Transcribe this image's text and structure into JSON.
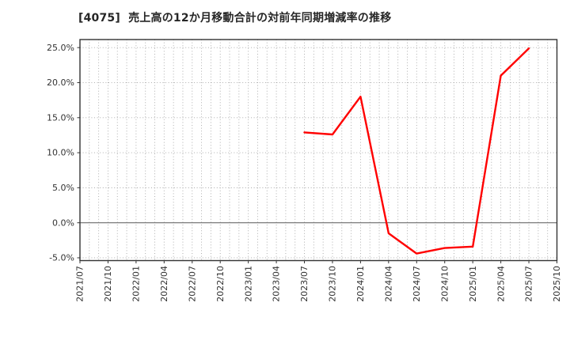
{
  "chart_data": {
    "type": "line",
    "title": "[4075]  売上高の12か月移動合計の対前年同期増減率の推移",
    "ticker": "4075",
    "x_tick_labels": [
      "2021/07",
      "2021/10",
      "2022/01",
      "2022/04",
      "2022/07",
      "2022/10",
      "2023/01",
      "2023/04",
      "2023/07",
      "2023/10",
      "2024/01",
      "2024/04",
      "2024/07",
      "2024/10",
      "2025/01",
      "2025/04",
      "2025/07",
      "2025/10"
    ],
    "y_ticks": [
      {
        "value": 25,
        "label": "25.0%"
      },
      {
        "value": 20,
        "label": "20.0%"
      },
      {
        "value": 15,
        "label": "15.0%"
      },
      {
        "value": 10,
        "label": "10.0%"
      },
      {
        "value": 5,
        "label": "5.0%"
      },
      {
        "value": 0,
        "label": "0.0%"
      },
      {
        "value": -5,
        "label": "-5.0%"
      }
    ],
    "ylim": [
      -5.4,
      26.15
    ],
    "months_per_major_tick": 3,
    "series": [
      {
        "color": "#ff0000",
        "points": [
          {
            "x": "2023/07",
            "y": 12.9
          },
          {
            "x": "2023/10",
            "y": 12.6
          },
          {
            "x": "2024/01",
            "y": 18.0
          },
          {
            "x": "2024/04",
            "y": -1.5
          },
          {
            "x": "2024/07",
            "y": -4.4
          },
          {
            "x": "2024/10",
            "y": -3.6
          },
          {
            "x": "2025/01",
            "y": -3.4
          },
          {
            "x": "2025/04",
            "y": 21.0
          },
          {
            "x": "2025/07",
            "y": 24.9
          }
        ]
      }
    ],
    "colors": {
      "line": "#ff0000",
      "grid": "#a6a6a6",
      "zero_line": "#7a7a7a",
      "border": "#333333",
      "text": "#333333",
      "title_text": "#262626",
      "background": "#ffffff"
    },
    "grid": {
      "vertical": "monthly dotted",
      "horizontal": "every 5% dotted",
      "zero_line": "solid"
    },
    "legend": "none"
  }
}
